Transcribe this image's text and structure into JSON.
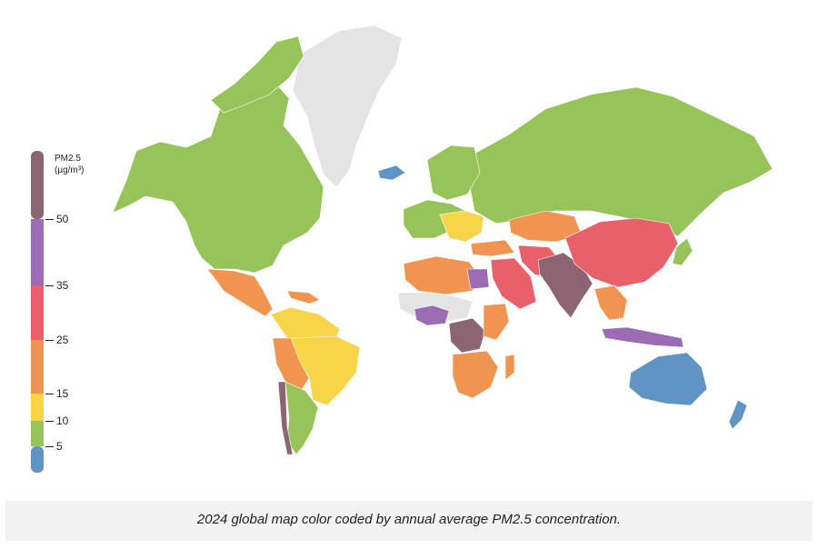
{
  "legend": {
    "title_line1": "PM2.5",
    "title_line2": "(µg/m³)",
    "ticks": [
      "50",
      "35",
      "25",
      "15",
      "10",
      "5"
    ],
    "bands": [
      {
        "range": "<5",
        "color": "#5f94c5"
      },
      {
        "range": "5–10",
        "color": "#97c459"
      },
      {
        "range": "10–15",
        "color": "#f8d44a"
      },
      {
        "range": "15–25",
        "color": "#f0944f"
      },
      {
        "range": "25–35",
        "color": "#e8606a"
      },
      {
        "range": "35–50",
        "color": "#9b6bb4"
      },
      {
        "range": ">50",
        "color": "#8c6472"
      }
    ]
  },
  "colors": {
    "no_data": "#e4e4e4",
    "blue": "#5f94c5",
    "green": "#97c459",
    "yellow": "#f8d44a",
    "orange": "#f0944f",
    "red": "#e8606a",
    "purple": "#9b6bb4",
    "brown": "#8c6472"
  },
  "caption": "2024 global map color coded by annual average PM2.5 concentration."
}
